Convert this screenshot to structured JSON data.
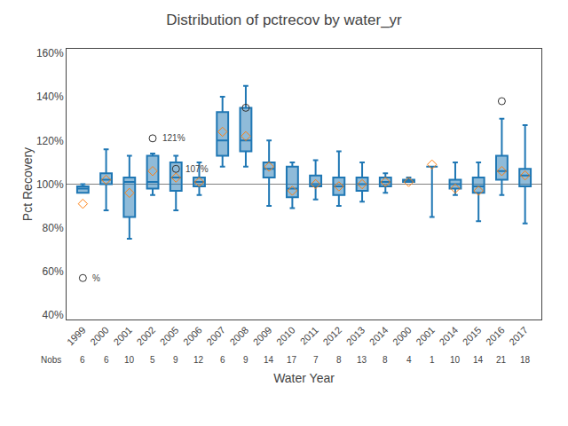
{
  "chart_data": {
    "type": "box",
    "title": "Distribution of pctrecov by water_yr",
    "xlabel": "Water Year",
    "ylabel": "Pct Recovery",
    "categories": [
      "1999",
      "2000",
      "2001",
      "2002",
      "2005",
      "2006",
      "2007",
      "2008",
      "2009",
      "2010",
      "2011",
      "2012",
      "2013",
      "2014",
      "2000",
      "2001",
      "2014",
      "2015",
      "2016",
      "2017"
    ],
    "boxes": [
      {
        "whislo": 97,
        "q1": 96,
        "med": 98,
        "q3": 99,
        "whishi": 100,
        "mean": 91,
        "fliers": [
          57
        ]
      },
      {
        "whislo": 88,
        "q1": 100,
        "med": 102,
        "q3": 105,
        "whishi": 116,
        "mean": 102,
        "fliers": []
      },
      {
        "whislo": 75,
        "q1": 85,
        "med": 101,
        "q3": 103,
        "whishi": 113,
        "mean": 96,
        "fliers": []
      },
      {
        "whislo": 95,
        "q1": 98,
        "med": 101,
        "q3": 113,
        "whishi": 114,
        "mean": 106,
        "fliers": [
          121
        ]
      },
      {
        "whislo": 88,
        "q1": 97,
        "med": 103,
        "q3": 110,
        "whishi": 113,
        "mean": 103,
        "fliers": [
          107
        ]
      },
      {
        "whislo": 95,
        "q1": 99,
        "med": 101,
        "q3": 103,
        "whishi": 110,
        "mean": 101,
        "fliers": []
      },
      {
        "whislo": 108,
        "q1": 113,
        "med": 120,
        "q3": 133,
        "whishi": 140,
        "mean": 124,
        "fliers": []
      },
      {
        "whislo": 108,
        "q1": 115,
        "med": 120,
        "q3": 135,
        "whishi": 145,
        "mean": 122,
        "fliers": [
          135
        ]
      },
      {
        "whislo": 90,
        "q1": 103,
        "med": 107,
        "q3": 110,
        "whishi": 120,
        "mean": 108,
        "fliers": []
      },
      {
        "whislo": 89,
        "q1": 94,
        "med": 98,
        "q3": 108,
        "whishi": 110,
        "mean": 97,
        "fliers": []
      },
      {
        "whislo": 93,
        "q1": 99,
        "med": 100,
        "q3": 104,
        "whishi": 111,
        "mean": 100,
        "fliers": []
      },
      {
        "whislo": 90,
        "q1": 95,
        "med": 99,
        "q3": 103,
        "whishi": 115,
        "mean": 99,
        "fliers": []
      },
      {
        "whislo": 92,
        "q1": 97,
        "med": 100,
        "q3": 103,
        "whishi": 110,
        "mean": 100,
        "fliers": []
      },
      {
        "whislo": 96,
        "q1": 99,
        "med": 101,
        "q3": 103,
        "whishi": 105,
        "mean": 101,
        "fliers": []
      },
      {
        "whislo": 101,
        "q1": 101,
        "med": 101,
        "q3": 102,
        "whishi": 103,
        "mean": 101,
        "fliers": []
      },
      {
        "whislo": 85,
        "q1": 108,
        "med": 108,
        "q3": 108,
        "whishi": 108,
        "mean": 109,
        "fliers": []
      },
      {
        "whislo": 95,
        "q1": 98,
        "med": 100,
        "q3": 102,
        "whishi": 110,
        "mean": 98,
        "fliers": []
      },
      {
        "whislo": 83,
        "q1": 96,
        "med": 99,
        "q3": 103,
        "whishi": 110,
        "mean": 97,
        "fliers": []
      },
      {
        "whislo": 95,
        "q1": 102,
        "med": 106,
        "q3": 113,
        "whishi": 130,
        "mean": 106,
        "fliers": [
          138
        ]
      },
      {
        "whislo": 82,
        "q1": 99,
        "med": 104,
        "q3": 107,
        "whishi": 127,
        "mean": 104,
        "fliers": []
      }
    ],
    "counts_label": "Nobs",
    "counts": [
      6,
      6,
      10,
      5,
      9,
      12,
      6,
      9,
      14,
      17,
      7,
      8,
      13,
      8,
      4,
      1,
      10,
      14,
      21,
      18
    ],
    "reference_line": 100,
    "annotations": [
      {
        "text": "%",
        "x": "1999",
        "y": 57
      },
      {
        "text": "121%",
        "x": "2002",
        "y": 121
      },
      {
        "text": "107%",
        "x": "2005",
        "y": 107
      }
    ],
    "ylim": [
      38,
      162
    ],
    "yticks": [
      {
        "value": 40,
        "label": "40%"
      },
      {
        "value": 60,
        "label": "60%"
      },
      {
        "value": 80,
        "label": "80%"
      },
      {
        "value": 100,
        "label": "100%"
      },
      {
        "value": 120,
        "label": "120%"
      },
      {
        "value": 140,
        "label": "140%"
      },
      {
        "value": 160,
        "label": "160%"
      }
    ],
    "grid": false
  }
}
